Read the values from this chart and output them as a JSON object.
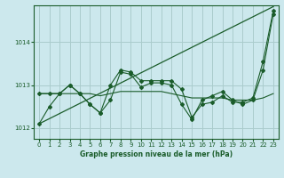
{
  "title": "Graphe pression niveau de la mer (hPa)",
  "background_color": "#cce8ed",
  "grid_color": "#aacccc",
  "line_color": "#1a5c2a",
  "xlim": [
    -0.5,
    23.5
  ],
  "ylim": [
    1011.75,
    1014.85
  ],
  "yticks": [
    1012,
    1013,
    1014
  ],
  "xticks": [
    0,
    1,
    2,
    3,
    4,
    5,
    6,
    7,
    8,
    9,
    10,
    11,
    12,
    13,
    14,
    15,
    16,
    17,
    18,
    19,
    20,
    21,
    22,
    23
  ],
  "series_wiggly": [
    1012.8,
    1012.8,
    1012.8,
    1013.0,
    1012.8,
    1012.55,
    1012.35,
    1013.0,
    1013.35,
    1013.3,
    1013.1,
    1013.1,
    1013.1,
    1013.1,
    1012.9,
    1012.25,
    1012.55,
    1012.6,
    1012.75,
    1012.6,
    1012.6,
    1012.7,
    1013.55,
    1014.72
  ],
  "series_flat1": [
    1012.8,
    1012.8,
    1012.8,
    1012.8,
    1012.8,
    1012.8,
    1012.75,
    1012.8,
    1012.85,
    1012.85,
    1012.85,
    1012.85,
    1012.85,
    1012.8,
    1012.75,
    1012.7,
    1012.7,
    1012.7,
    1012.7,
    1012.65,
    1012.65,
    1012.65,
    1012.7,
    1012.8
  ],
  "series_dipping": [
    1012.1,
    1012.5,
    1012.8,
    1013.0,
    1012.8,
    1012.55,
    1012.35,
    1012.65,
    1013.3,
    1013.25,
    1012.95,
    1013.05,
    1013.05,
    1013.0,
    1012.55,
    1012.2,
    1012.65,
    1012.75,
    1012.85,
    1012.65,
    1012.55,
    1012.65,
    1013.35,
    1014.65
  ],
  "trend_line": [
    1012.1,
    1014.82
  ],
  "trend_x": [
    0,
    23
  ]
}
